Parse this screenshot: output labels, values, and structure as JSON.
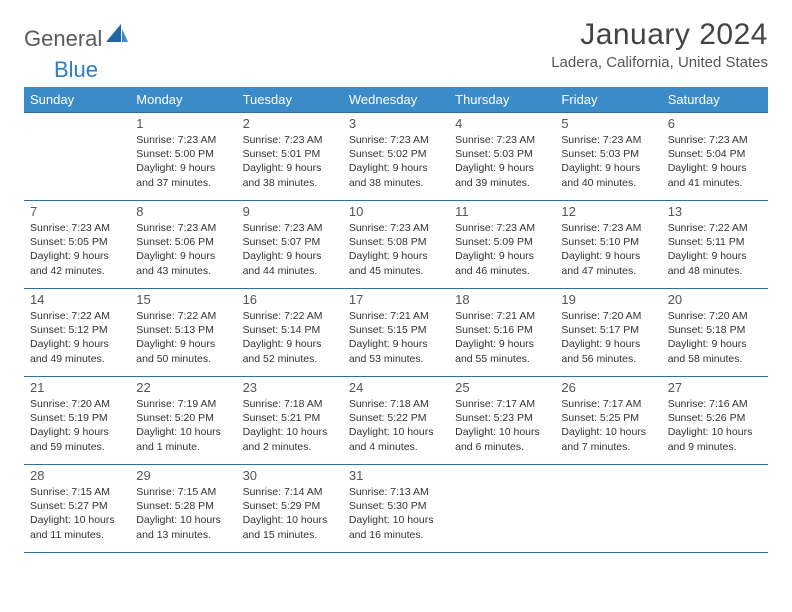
{
  "brand": {
    "part1": "General",
    "part2": "Blue"
  },
  "title": "January 2024",
  "location": "Ladera, California, United States",
  "colors": {
    "header_bg": "#3b8bc8",
    "header_text": "#ffffff",
    "row_border": "#2f6fa8",
    "body_text": "#333333",
    "title_text": "#444444",
    "logo_gray": "#5a5a5a",
    "logo_blue": "#2b7ec0"
  },
  "weekdays": [
    "Sunday",
    "Monday",
    "Tuesday",
    "Wednesday",
    "Thursday",
    "Friday",
    "Saturday"
  ],
  "font": {
    "family": "Arial",
    "header_size": 13,
    "body_size": 10.5,
    "title_size": 30,
    "location_size": 15
  },
  "cells": {
    "1": {
      "sunrise": "7:23 AM",
      "sunset": "5:00 PM",
      "daylight": "9 hours and 37 minutes."
    },
    "2": {
      "sunrise": "7:23 AM",
      "sunset": "5:01 PM",
      "daylight": "9 hours and 38 minutes."
    },
    "3": {
      "sunrise": "7:23 AM",
      "sunset": "5:02 PM",
      "daylight": "9 hours and 38 minutes."
    },
    "4": {
      "sunrise": "7:23 AM",
      "sunset": "5:03 PM",
      "daylight": "9 hours and 39 minutes."
    },
    "5": {
      "sunrise": "7:23 AM",
      "sunset": "5:03 PM",
      "daylight": "9 hours and 40 minutes."
    },
    "6": {
      "sunrise": "7:23 AM",
      "sunset": "5:04 PM",
      "daylight": "9 hours and 41 minutes."
    },
    "7": {
      "sunrise": "7:23 AM",
      "sunset": "5:05 PM",
      "daylight": "9 hours and 42 minutes."
    },
    "8": {
      "sunrise": "7:23 AM",
      "sunset": "5:06 PM",
      "daylight": "9 hours and 43 minutes."
    },
    "9": {
      "sunrise": "7:23 AM",
      "sunset": "5:07 PM",
      "daylight": "9 hours and 44 minutes."
    },
    "10": {
      "sunrise": "7:23 AM",
      "sunset": "5:08 PM",
      "daylight": "9 hours and 45 minutes."
    },
    "11": {
      "sunrise": "7:23 AM",
      "sunset": "5:09 PM",
      "daylight": "9 hours and 46 minutes."
    },
    "12": {
      "sunrise": "7:23 AM",
      "sunset": "5:10 PM",
      "daylight": "9 hours and 47 minutes."
    },
    "13": {
      "sunrise": "7:22 AM",
      "sunset": "5:11 PM",
      "daylight": "9 hours and 48 minutes."
    },
    "14": {
      "sunrise": "7:22 AM",
      "sunset": "5:12 PM",
      "daylight": "9 hours and 49 minutes."
    },
    "15": {
      "sunrise": "7:22 AM",
      "sunset": "5:13 PM",
      "daylight": "9 hours and 50 minutes."
    },
    "16": {
      "sunrise": "7:22 AM",
      "sunset": "5:14 PM",
      "daylight": "9 hours and 52 minutes."
    },
    "17": {
      "sunrise": "7:21 AM",
      "sunset": "5:15 PM",
      "daylight": "9 hours and 53 minutes."
    },
    "18": {
      "sunrise": "7:21 AM",
      "sunset": "5:16 PM",
      "daylight": "9 hours and 55 minutes."
    },
    "19": {
      "sunrise": "7:20 AM",
      "sunset": "5:17 PM",
      "daylight": "9 hours and 56 minutes."
    },
    "20": {
      "sunrise": "7:20 AM",
      "sunset": "5:18 PM",
      "daylight": "9 hours and 58 minutes."
    },
    "21": {
      "sunrise": "7:20 AM",
      "sunset": "5:19 PM",
      "daylight": "9 hours and 59 minutes."
    },
    "22": {
      "sunrise": "7:19 AM",
      "sunset": "5:20 PM",
      "daylight": "10 hours and 1 minute."
    },
    "23": {
      "sunrise": "7:18 AM",
      "sunset": "5:21 PM",
      "daylight": "10 hours and 2 minutes."
    },
    "24": {
      "sunrise": "7:18 AM",
      "sunset": "5:22 PM",
      "daylight": "10 hours and 4 minutes."
    },
    "25": {
      "sunrise": "7:17 AM",
      "sunset": "5:23 PM",
      "daylight": "10 hours and 6 minutes."
    },
    "26": {
      "sunrise": "7:17 AM",
      "sunset": "5:25 PM",
      "daylight": "10 hours and 7 minutes."
    },
    "27": {
      "sunrise": "7:16 AM",
      "sunset": "5:26 PM",
      "daylight": "10 hours and 9 minutes."
    },
    "28": {
      "sunrise": "7:15 AM",
      "sunset": "5:27 PM",
      "daylight": "10 hours and 11 minutes."
    },
    "29": {
      "sunrise": "7:15 AM",
      "sunset": "5:28 PM",
      "daylight": "10 hours and 13 minutes."
    },
    "30": {
      "sunrise": "7:14 AM",
      "sunset": "5:29 PM",
      "daylight": "10 hours and 15 minutes."
    },
    "31": {
      "sunrise": "7:13 AM",
      "sunset": "5:30 PM",
      "daylight": "10 hours and 16 minutes."
    }
  },
  "labels": {
    "sunrise": "Sunrise: ",
    "sunset": "Sunset: ",
    "daylight": "Daylight: "
  },
  "layout": {
    "first_day_col": 1,
    "days_in_month": 31,
    "rows": 5,
    "cols": 7
  }
}
